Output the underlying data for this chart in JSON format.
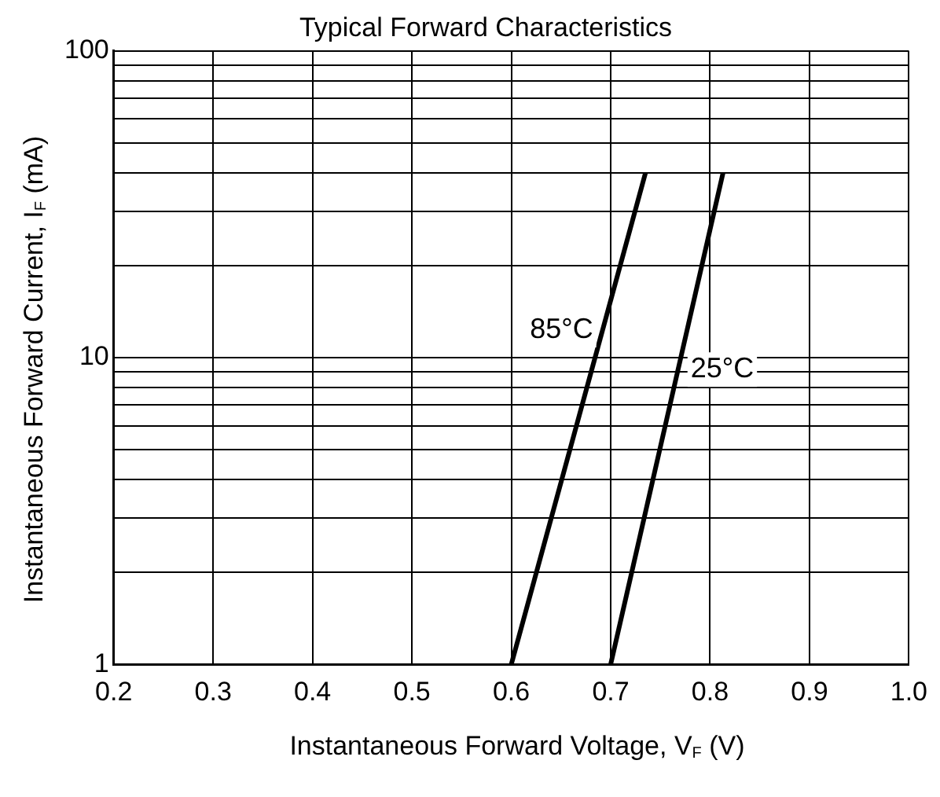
{
  "chart_data": {
    "type": "line",
    "title": "Typical Forward Characteristics",
    "xlabel": "Instantaneous Forward Voltage, V$_{F}$ (V)",
    "ylabel": "Instantaneous Forward Current, I$_{F}$ (mA)",
    "series": [
      {
        "name": "85°C",
        "color": "#000000",
        "x": [
          0.6,
          0.735
        ],
        "values": [
          1,
          40
        ]
      },
      {
        "name": "25°C",
        "color": "#000000",
        "x": [
          0.7,
          0.813
        ],
        "values": [
          1,
          40
        ]
      }
    ],
    "xlim": [
      0.2,
      1.0
    ],
    "xticks": [
      0.2,
      0.3,
      0.4,
      0.5,
      0.6,
      0.7,
      0.8,
      0.9,
      {
        "value": 1.0,
        "label": "1.0"
      }
    ],
    "ylim": [
      1,
      100
    ],
    "yticks": [
      1,
      {
        "value": 2,
        "label": null
      },
      {
        "value": 3,
        "label": null
      },
      {
        "value": 4,
        "label": null
      },
      {
        "value": 5,
        "label": null
      },
      {
        "value": 6,
        "label": null
      },
      {
        "value": 7,
        "label": null
      },
      {
        "value": 8,
        "label": null
      },
      {
        "value": 9,
        "label": null
      },
      10,
      {
        "value": 20,
        "label": null
      },
      {
        "value": 30,
        "label": null
      },
      {
        "value": 40,
        "label": null
      },
      {
        "value": 50,
        "label": null
      },
      {
        "value": 60,
        "label": null
      },
      {
        "value": 70,
        "label": null
      },
      {
        "value": 80,
        "label": null
      },
      {
        "value": 90,
        "label": null
      },
      100
    ],
    "log": "y",
    "grid": true,
    "legend": false,
    "marker": "none",
    "line_style": "solid"
  }
}
